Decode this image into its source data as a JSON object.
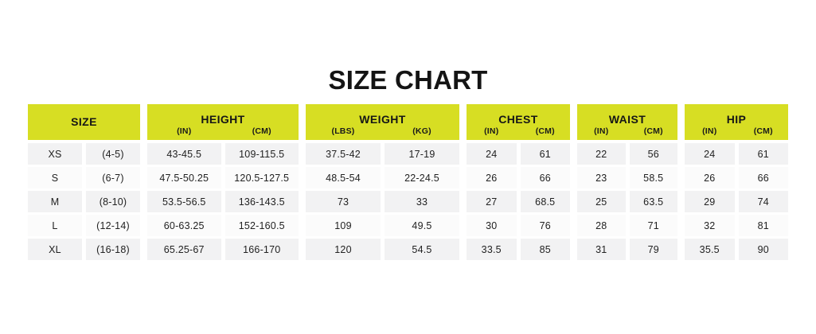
{
  "title": "SIZE CHART",
  "colors": {
    "header_bg": "#d7de23",
    "row_odd": "#f2f2f3",
    "row_even": "#fbfbfb",
    "title_text": "#141414",
    "cell_text": "#222222",
    "page_bg": "#ffffff"
  },
  "table": {
    "groups": [
      {
        "id": "size",
        "label": "SIZE",
        "sublabels": []
      },
      {
        "id": "height",
        "label": "HEIGHT",
        "sublabels": [
          "(IN)",
          "(CM)"
        ]
      },
      {
        "id": "weight",
        "label": "WEIGHT",
        "sublabels": [
          "(LBS)",
          "(KG)"
        ]
      },
      {
        "id": "chest",
        "label": "CHEST",
        "sublabels": [
          "(IN)",
          "(CM)"
        ]
      },
      {
        "id": "waist",
        "label": "WAIST",
        "sublabels": [
          "(IN)",
          "(CM)"
        ]
      },
      {
        "id": "hip",
        "label": "HIP",
        "sublabels": [
          "(IN)",
          "(CM)"
        ]
      }
    ],
    "rows": [
      [
        "XS",
        "(4-5)",
        "43-45.5",
        "109-115.5",
        "37.5-42",
        "17-19",
        "24",
        "61",
        "22",
        "56",
        "24",
        "61"
      ],
      [
        "S",
        "(6-7)",
        "47.5-50.25",
        "120.5-127.5",
        "48.5-54",
        "22-24.5",
        "26",
        "66",
        "23",
        "58.5",
        "26",
        "66"
      ],
      [
        "M",
        "(8-10)",
        "53.5-56.5",
        "136-143.5",
        "73",
        "33",
        "27",
        "68.5",
        "25",
        "63.5",
        "29",
        "74"
      ],
      [
        "L",
        "(12-14)",
        "60-63.25",
        "152-160.5",
        "109",
        "49.5",
        "30",
        "76",
        "28",
        "71",
        "32",
        "81"
      ],
      [
        "XL",
        "(16-18)",
        "65.25-67",
        "166-170",
        "120",
        "54.5",
        "33.5",
        "85",
        "31",
        "79",
        "35.5",
        "90"
      ]
    ]
  }
}
